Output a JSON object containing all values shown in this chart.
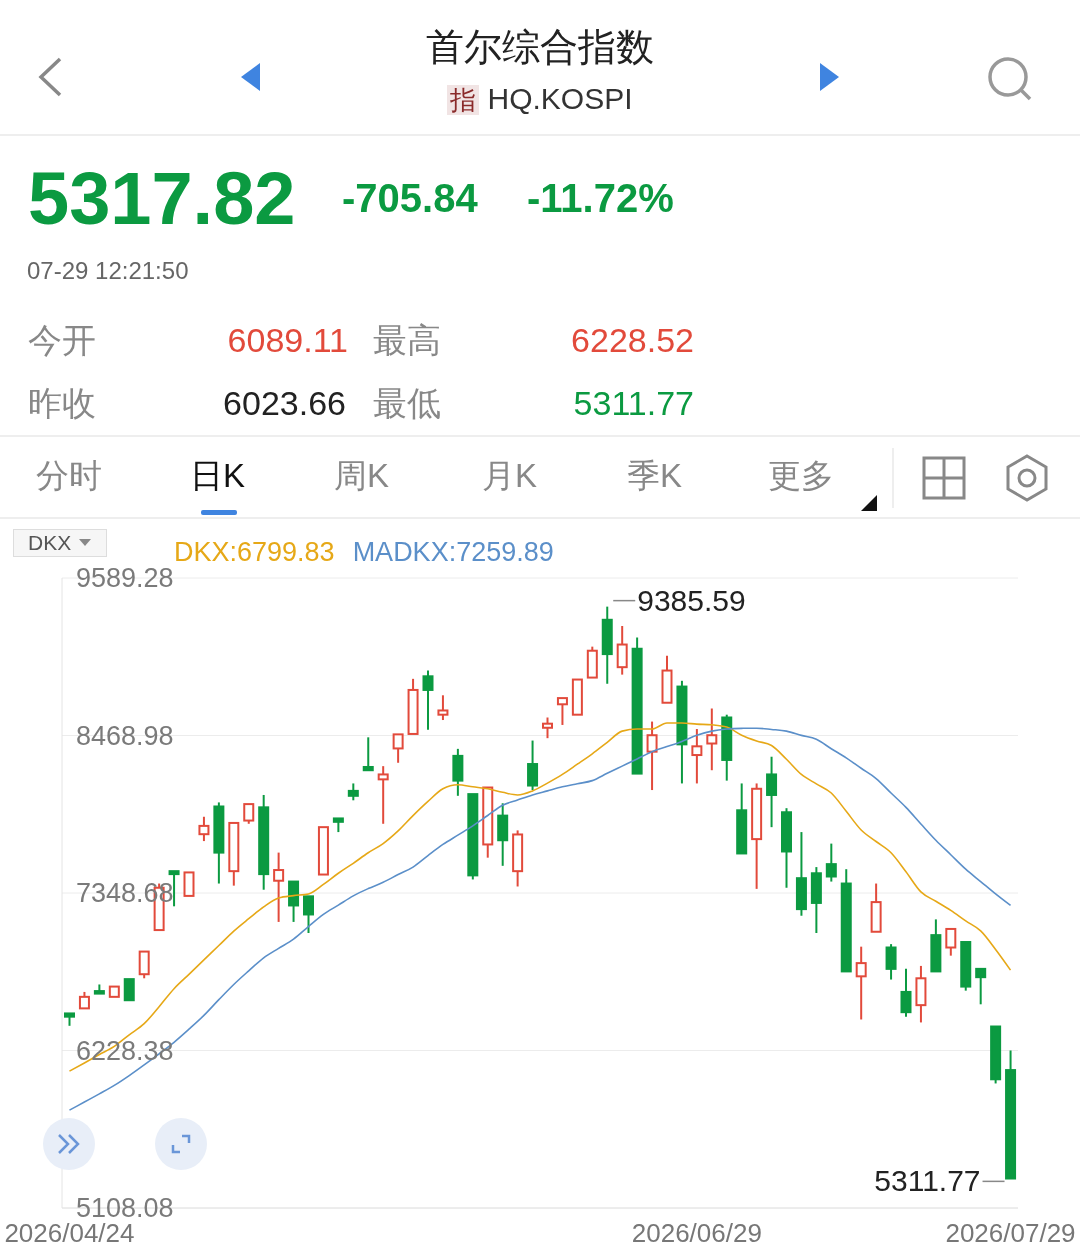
{
  "chart_data": {
    "type": "candlestick",
    "title": "首尔综合指数",
    "subtitle": "HQ.KOSPI",
    "categories": [
      "2026/04/24",
      null,
      null,
      null,
      null,
      null,
      null,
      null,
      null,
      null,
      null,
      null,
      null,
      null,
      null,
      null,
      null,
      null,
      null,
      null,
      null,
      null,
      null,
      null,
      null,
      null,
      null,
      null,
      null,
      null,
      null,
      null,
      null,
      null,
      null,
      null,
      null,
      null,
      null,
      null,
      null,
      null,
      "2026/06/29",
      null,
      null,
      null,
      null,
      null,
      null,
      null,
      null,
      null,
      null,
      null,
      null,
      null,
      null,
      null,
      null,
      null,
      null,
      null,
      null,
      "2026/07/29"
    ],
    "ohlc": [
      [
        6492,
        6504,
        6404,
        6469
      ],
      [
        6528,
        6645,
        6528,
        6610
      ],
      [
        6651,
        6698,
        6624,
        6633
      ],
      [
        6610,
        6689,
        6595,
        6683
      ],
      [
        6736,
        6742,
        6586,
        6586
      ],
      [
        6771,
        6938,
        6742,
        6932
      ],
      [
        7085,
        7416,
        7085,
        7386
      ],
      [
        7504,
        7518,
        7254,
        7483
      ],
      [
        7328,
        7501,
        7313,
        7495
      ],
      [
        7767,
        7891,
        7718,
        7826
      ],
      [
        7964,
        7993,
        7416,
        7636
      ],
      [
        7504,
        7852,
        7401,
        7847
      ],
      [
        7864,
        7987,
        7841,
        7981
      ],
      [
        7958,
        8046,
        7372,
        7483
      ],
      [
        7436,
        7636,
        7143,
        7512
      ],
      [
        7430,
        7436,
        7143,
        7260
      ],
      [
        7325,
        7331,
        7064,
        7196
      ],
      [
        7480,
        7823,
        7474,
        7817
      ],
      [
        7879,
        7885,
        7782,
        7855
      ],
      [
        8075,
        8128,
        8008,
        8040
      ],
      [
        8245,
        8456,
        8222,
        8222
      ],
      [
        8157,
        8251,
        7841,
        8192
      ],
      [
        8377,
        8486,
        8275,
        8477
      ],
      [
        8480,
        8872,
        8480,
        8793
      ],
      [
        8890,
        8931,
        8509,
        8793
      ],
      [
        8617,
        8755,
        8579,
        8647
      ],
      [
        8324,
        8374,
        8040,
        8148
      ],
      [
        8052,
        8058,
        7445,
        7474
      ],
      [
        7694,
        8110,
        7600,
        8099
      ],
      [
        7899,
        7987,
        7542,
        7724
      ],
      [
        7504,
        7794,
        7395,
        7765
      ],
      [
        8266,
        8433,
        8081,
        8113
      ],
      [
        8524,
        8597,
        8450,
        8553
      ],
      [
        8691,
        8743,
        8544,
        8735
      ],
      [
        8617,
        8872,
        8612,
        8867
      ],
      [
        8881,
        9101,
        8872,
        9072
      ],
      [
        9292,
        9385.59,
        8837,
        9048
      ],
      [
        8955,
        9248,
        8902,
        9116
      ],
      [
        9086,
        9166,
        8198,
        8198
      ],
      [
        8354,
        8568,
        8081,
        8471
      ],
      [
        8702,
        9037,
        8702,
        8931
      ],
      [
        8817,
        8858,
        8128,
        8406
      ],
      [
        8330,
        8515,
        8128,
        8392
      ],
      [
        8412,
        8661,
        8222,
        8471
      ],
      [
        8597,
        8617,
        8148,
        8295
      ],
      [
        7937,
        8128,
        7621,
        7630
      ],
      [
        7732,
        8128,
        7378,
        8090
      ],
      [
        8192,
        8318,
        7817,
        8046
      ],
      [
        7923,
        7952,
        7386,
        7644
      ],
      [
        7454,
        7782,
        7187,
        7234
      ],
      [
        7489,
        7533,
        7064,
        7278
      ],
      [
        7554,
        7700,
        7430,
        7466
      ],
      [
        7416,
        7518,
        6786,
        6791
      ],
      [
        6756,
        6967,
        6449,
        6850
      ],
      [
        7073,
        7416,
        7072,
        7284
      ],
      [
        6961,
        6985,
        6733,
        6809
      ],
      [
        6645,
        6809,
        6469,
        6501
      ],
      [
        6551,
        6830,
        6428,
        6742
      ],
      [
        7049,
        7161,
        6791,
        6791
      ],
      [
        6961,
        7099,
        6903,
        7093
      ],
      [
        7000,
        7005,
        6654,
        6683
      ],
      [
        6809,
        6815,
        6557,
        6750
      ],
      [
        6399,
        6405,
        5994,
        6023.66
      ],
      [
        6089.11,
        6228.52,
        5311.77,
        5317.82
      ]
    ],
    "colors": [
      "#0b9a41",
      "#e24a3b",
      "#0b9a41",
      "#e24a3b",
      "#0b9a41",
      "#e24a3b",
      "#e24a3b",
      "#0b9a41",
      "#e24a3b",
      "#e24a3b",
      "#0b9a41",
      "#e24a3b",
      "#e24a3b",
      "#0b9a41",
      "#e24a3b",
      "#0b9a41",
      "#0b9a41",
      "#e24a3b",
      "#0b9a41",
      "#0b9a41",
      "#0b9a41",
      "#e24a3b",
      "#e24a3b",
      "#e24a3b",
      "#0b9a41",
      "#e24a3b",
      "#0b9a41",
      "#0b9a41",
      "#e24a3b",
      "#0b9a41",
      "#e24a3b",
      "#0b9a41",
      "#e24a3b",
      "#e24a3b",
      "#e24a3b",
      "#e24a3b",
      "#0b9a41",
      "#e24a3b",
      "#0b9a41",
      "#e24a3b",
      "#e24a3b",
      "#0b9a41",
      "#e24a3b",
      "#e24a3b",
      "#0b9a41",
      "#0b9a41",
      "#e24a3b",
      "#0b9a41",
      "#0b9a41",
      "#0b9a41",
      "#0b9a41",
      "#0b9a41",
      "#0b9a41",
      "#e24a3b",
      "#e24a3b",
      "#0b9a41",
      "#0b9a41",
      "#e24a3b",
      "#0b9a41",
      "#e24a3b",
      "#0b9a41",
      "#0b9a41",
      "#0b9a41",
      "#0b9a41"
    ],
    "series": [
      {
        "type": "line",
        "name": "DKX:6799.83",
        "color": "#e6a817",
        "values": [
          6082,
          6140,
          6200,
          6258,
          6340,
          6419,
          6540,
          6668,
          6770,
          6873,
          6975,
          7078,
          7166,
          7250,
          7313,
          7330,
          7342,
          7410,
          7489,
          7560,
          7635,
          7700,
          7790,
          7899,
          8000,
          8090,
          8119,
          8104,
          8090,
          8065,
          8046,
          8075,
          8130,
          8192,
          8265,
          8339,
          8420,
          8500,
          8515,
          8515,
          8558,
          8558,
          8550,
          8545,
          8529,
          8471,
          8430,
          8398,
          8300,
          8192,
          8125,
          8060,
          7930,
          7797,
          7715,
          7635,
          7500,
          7357,
          7290,
          7225,
          7150,
          7079,
          6947,
          6800
        ]
      },
      {
        "type": "line",
        "name": "MADKX:7259.89",
        "color": "#5b8fc9",
        "values": [
          5804,
          5862,
          5920,
          5980,
          6050,
          6126,
          6205,
          6287,
          6380,
          6478,
          6590,
          6698,
          6795,
          6888,
          6955,
          7020,
          7110,
          7196,
          7262,
          7328,
          7380,
          7425,
          7480,
          7533,
          7615,
          7694,
          7760,
          7826,
          7900,
          7973,
          8010,
          8046,
          8075,
          8104,
          8126,
          8148,
          8200,
          8251,
          8302,
          8354,
          8390,
          8427,
          8470,
          8500,
          8515,
          8520,
          8521,
          8512,
          8500,
          8470,
          8442,
          8375,
          8310,
          8236,
          8163,
          8060,
          7958,
          7840,
          7724,
          7621,
          7518,
          7430,
          7342,
          7260
        ]
      }
    ],
    "ylim": [
      5108.08,
      9589.28
    ],
    "yticks": [
      5108.08,
      6228.38,
      7348.68,
      8468.98,
      9589.28
    ],
    "grid": "y",
    "legend": "top left",
    "annotations": [
      "指",
      "5317.82",
      "-705.84",
      "-11.72%",
      "07-29 12:21:50",
      "今开",
      "6089.11",
      "最高",
      "6228.52",
      "昨收",
      "6023.66",
      "最低",
      "5311.77",
      "分时",
      "日K",
      "周K",
      "月K",
      "季K",
      "更多",
      "DKX",
      "9385.59",
      "5311.77"
    ]
  }
}
